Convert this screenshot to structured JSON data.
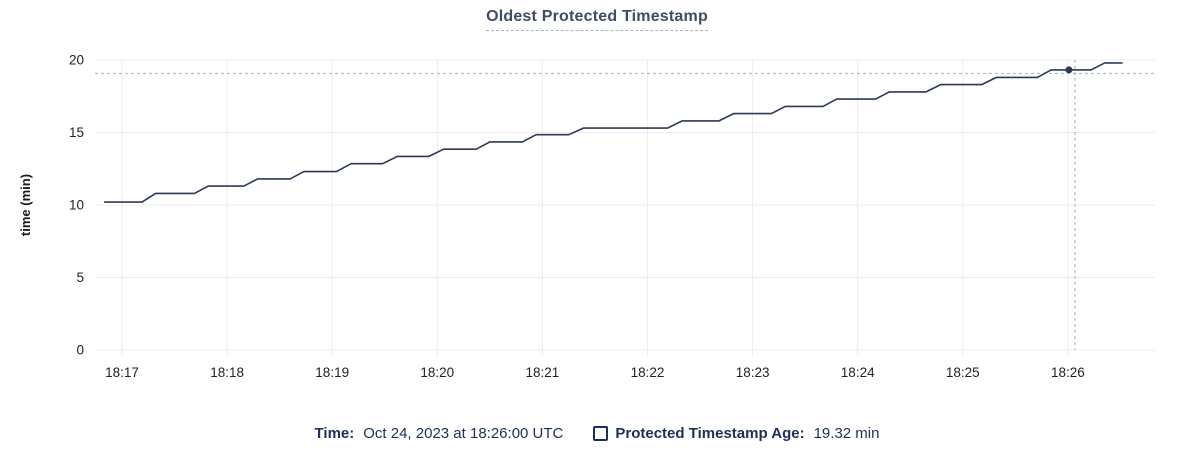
{
  "title": "Oldest Protected Timestamp",
  "colors": {
    "line": "#2c3a57",
    "grid": "#ededed",
    "axis_text": "#232323",
    "y_title_text": "#1c1c1c",
    "crosshair": "#a3b1bc",
    "title_text": "#3f4c66",
    "footer_text": "#1d3055"
  },
  "footer": {
    "time_label": "Time:",
    "time_value": "Oct 24, 2023 at 18:26:00 UTC",
    "series_label": "Protected Timestamp Age:",
    "series_value": "19.32 min"
  },
  "chart_data": {
    "type": "line",
    "title": "Oldest Protected Timestamp",
    "xlabel": "",
    "ylabel": "time (min)",
    "ylim": [
      0,
      20
    ],
    "yticks": [
      0,
      5,
      10,
      15,
      20
    ],
    "xticks": [
      "18:17",
      "18:18",
      "18:19",
      "18:20",
      "18:21",
      "18:22",
      "18:23",
      "18:24",
      "18:25",
      "18:26"
    ],
    "x_units": "minutes after 18:17:00 UTC, Oct 24 2023",
    "xlim": [
      -0.26,
      9.83
    ],
    "grid": true,
    "legend_position": "bottom",
    "series": [
      {
        "name": "Protected Timestamp Age",
        "points": [
          [
            -0.17,
            10.2
          ],
          [
            0.19,
            10.2
          ],
          [
            0.32,
            10.8
          ],
          [
            0.69,
            10.8
          ],
          [
            0.82,
            11.3
          ],
          [
            1.16,
            11.3
          ],
          [
            1.29,
            11.8
          ],
          [
            1.6,
            11.8
          ],
          [
            1.73,
            12.3
          ],
          [
            2.04,
            12.3
          ],
          [
            2.18,
            12.85
          ],
          [
            2.48,
            12.85
          ],
          [
            2.62,
            13.35
          ],
          [
            2.92,
            13.35
          ],
          [
            3.06,
            13.85
          ],
          [
            3.37,
            13.85
          ],
          [
            3.5,
            14.35
          ],
          [
            3.81,
            14.35
          ],
          [
            3.94,
            14.85
          ],
          [
            4.25,
            14.85
          ],
          [
            4.39,
            15.3
          ],
          [
            5.19,
            15.3
          ],
          [
            5.33,
            15.8
          ],
          [
            5.68,
            15.8
          ],
          [
            5.82,
            16.3
          ],
          [
            6.18,
            16.3
          ],
          [
            6.31,
            16.8
          ],
          [
            6.67,
            16.8
          ],
          [
            6.8,
            17.3
          ],
          [
            7.17,
            17.3
          ],
          [
            7.3,
            17.8
          ],
          [
            7.65,
            17.8
          ],
          [
            7.79,
            18.3
          ],
          [
            8.18,
            18.3
          ],
          [
            8.32,
            18.8
          ],
          [
            8.71,
            18.8
          ],
          [
            8.84,
            19.32
          ],
          [
            9.22,
            19.32
          ],
          [
            9.35,
            19.8
          ],
          [
            9.52,
            19.8
          ]
        ]
      }
    ],
    "crosshair": {
      "t": 9.0,
      "time_label": "18:26:00",
      "value": 19.32
    }
  }
}
